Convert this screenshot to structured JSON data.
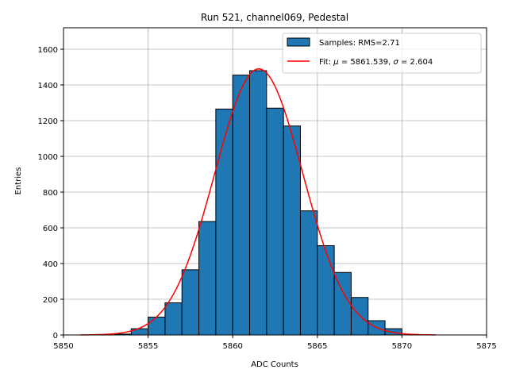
{
  "chart_data": {
    "type": "bar",
    "title": "Run 521, channel069, Pedestal",
    "xlabel": "ADC Counts",
    "ylabel": "Entries",
    "xlim": [
      5850,
      5875
    ],
    "ylim": [
      0,
      1720
    ],
    "grid": true,
    "legend_position": "top-right",
    "x_ticks": [
      5850,
      5855,
      5860,
      5865,
      5870,
      5875
    ],
    "y_ticks": [
      0,
      200,
      400,
      600,
      800,
      1000,
      1200,
      1400,
      1600
    ],
    "histogram": {
      "name": "Samples: RMS=2.71",
      "bin_width": 1,
      "bin_starts": [
        5853,
        5854,
        5855,
        5856,
        5857,
        5858,
        5859,
        5860,
        5861,
        5862,
        5863,
        5864,
        5865,
        5866,
        5867,
        5868,
        5869
      ],
      "values": [
        5,
        35,
        100,
        180,
        365,
        635,
        1265,
        1455,
        1480,
        1270,
        1170,
        695,
        500,
        350,
        210,
        80,
        35
      ],
      "color": "#1f77b4",
      "edge_color": "#000000"
    },
    "fit": {
      "name": "Fit: μ = 5861.539, σ = 2.604",
      "label_parts": [
        "Fit: ",
        "μ",
        " = 5861.539, ",
        "σ",
        " = 2.604"
      ],
      "mu": 5861.539,
      "sigma": 2.604,
      "amplitude": 1490,
      "x_range": [
        5851,
        5872
      ],
      "color": "#ff0000"
    }
  }
}
